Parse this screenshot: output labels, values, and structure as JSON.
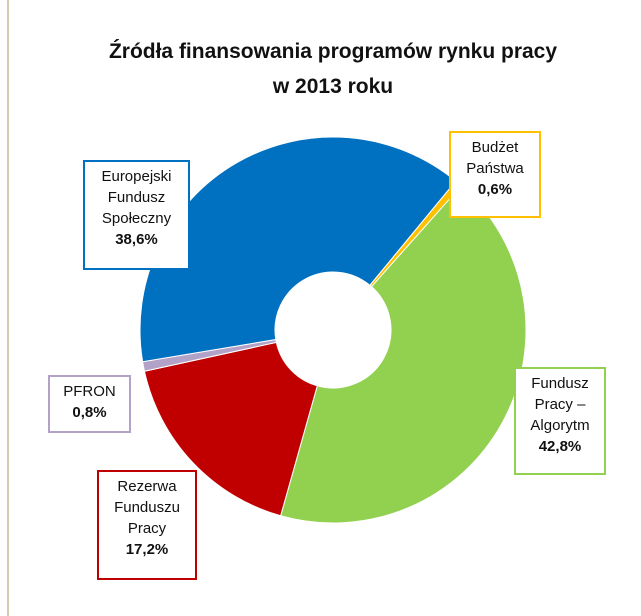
{
  "chart_data": {
    "type": "donut",
    "title": "Źródła finansowania programów rynku pracy w 2013 roku",
    "categories": [
      "Budżet Państwa",
      "Fundusz Pracy – Algorytm",
      "Rezerwa Funduszu Pracy",
      "PFRON",
      "Europejski Fundusz Społeczny"
    ],
    "values": [
      0.6,
      42.8,
      17.2,
      0.8,
      38.6
    ],
    "value_labels": [
      "0,6%",
      "42,8%",
      "17,2%",
      "0,8%",
      "38,6%"
    ],
    "colors": [
      "#ffc000",
      "#92d050",
      "#c00000",
      "#b3a2c7",
      "#0070c0"
    ]
  }
}
